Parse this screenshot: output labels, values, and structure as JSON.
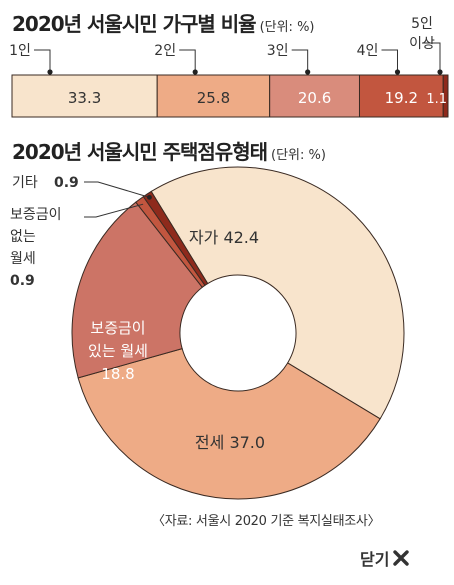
{
  "title1": "2020년 서울시민 가구별 비율",
  "title1_unit": "(단위: %)",
  "title2": "2020년 서울시민 주택점유형태",
  "title2_unit": "(단위: %)",
  "source": "〈자료: 서울시 2020 기준 복지실태조사〉",
  "close_label": "닫기",
  "close_icon": "close-x-icon",
  "chart_data": [
    {
      "type": "bar",
      "orientation": "stacked-horizontal",
      "title": "2020년 서울시민 가구별 비율",
      "unit": "(단위: %)",
      "categories": [
        "1인",
        "2인",
        "3인",
        "4인",
        "5인 이상"
      ],
      "values": [
        33.3,
        25.8,
        20.6,
        19.2,
        1.1
      ],
      "colors": [
        "#f8e4cc",
        "#eeab86",
        "#d98c7c",
        "#c2563f",
        "#8e2a1c"
      ]
    },
    {
      "type": "pie",
      "subtype": "donut",
      "title": "2020년 서울시민 주택점유형태",
      "unit": "(단위: %)",
      "slices": [
        {
          "label": "자가",
          "value": 42.4,
          "color": "#f8e4cc"
        },
        {
          "label": "전세",
          "value": 37.0,
          "color": "#eeab86"
        },
        {
          "label": "보증금이 있는 월세",
          "value": 18.8,
          "color": "#cc7466"
        },
        {
          "label": "보증금이 없는 월세",
          "value": 0.9,
          "color": "#c2563f"
        },
        {
          "label": "기타",
          "value": 0.9,
          "color": "#8e2a1c"
        }
      ]
    }
  ]
}
